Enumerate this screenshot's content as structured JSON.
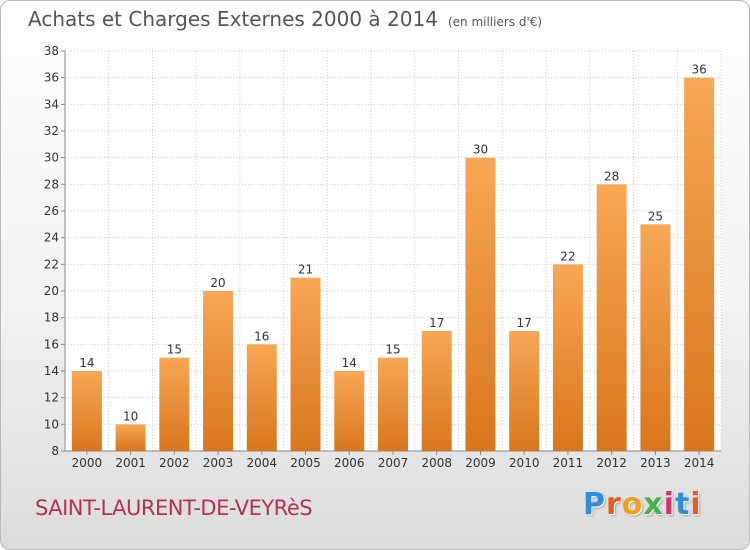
{
  "title": "Achats et Charges Externes 2000 à 2014",
  "subtitle": "(en milliers d'€)",
  "location": "SAINT-LAURENT-DE-VEYRèS",
  "logo": {
    "letters": [
      "P",
      "r",
      "o",
      "x",
      "i",
      "t",
      "i"
    ],
    "colors": [
      "#2f8fd6",
      "#e85c1e",
      "#f2a01c",
      "#4bb04a",
      "#d6336c",
      "#2f8fd6",
      "#e85c1e"
    ]
  },
  "colors": {
    "bar_top": "#f7a755",
    "bar_bottom": "#d9761c",
    "grid": "#d0d0d0",
    "axis_text": "#333333"
  },
  "chart_data": {
    "type": "bar",
    "categories": [
      "2000",
      "2001",
      "2002",
      "2003",
      "2004",
      "2005",
      "2006",
      "2007",
      "2008",
      "2009",
      "2010",
      "2011",
      "2012",
      "2013",
      "2014"
    ],
    "values": [
      14,
      10,
      15,
      20,
      16,
      21,
      14,
      15,
      17,
      30,
      17,
      22,
      28,
      25,
      36
    ],
    "data_labels": [
      "14",
      "10",
      "15",
      "20",
      "16",
      "21",
      "14",
      "15",
      "17",
      "30",
      "17",
      "22",
      "28",
      "25",
      "36"
    ],
    "ylim": [
      8,
      38
    ],
    "yticks": [
      "8",
      "10",
      "12",
      "14",
      "16",
      "18",
      "20",
      "22",
      "24",
      "26",
      "28",
      "30",
      "32",
      "34",
      "36",
      "38"
    ],
    "grid": true
  }
}
